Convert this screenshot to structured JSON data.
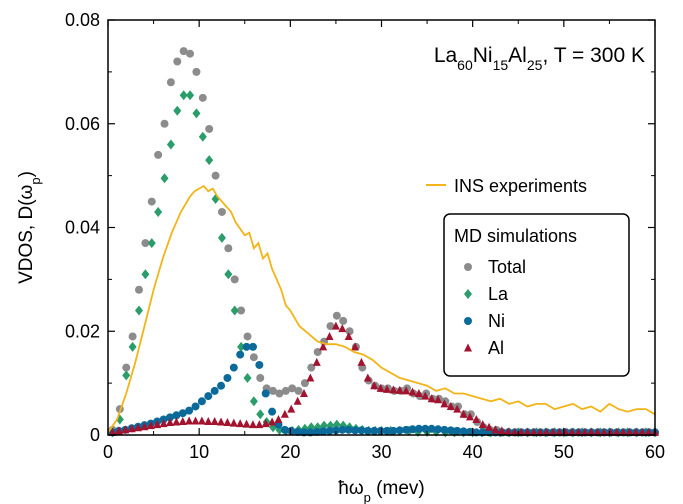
{
  "chart_data": {
    "type": "scatter",
    "annotation": {
      "base": "La",
      "sub1": "60",
      "mid1": "Ni",
      "sub2": "15",
      "mid2": "Al",
      "sub3": "25",
      "tail": ", T = 300 K"
    },
    "xlabel": {
      "prefix": "ħω",
      "sub": "p",
      "suffix": " (mev)"
    },
    "ylabel": {
      "prefix": "VDOS, D(ω",
      "sub": "p",
      "suffix": ")"
    },
    "xlim": [
      0,
      60
    ],
    "ylim": [
      0,
      0.08
    ],
    "xticks": [
      "0",
      "10",
      "20",
      "30",
      "40",
      "50",
      "60"
    ],
    "yticks": [
      "0",
      "0.02",
      "0.04",
      "0.06",
      "0.08"
    ],
    "grid": false,
    "legend": {
      "position": "right",
      "experiment_label": "INS experiments",
      "box_title": "MD simulations"
    },
    "colors": {
      "total": "#8c8c8c",
      "la": "#2a9d6a",
      "ni": "#0b6a9a",
      "al": "#a3122e",
      "ins": "#f2b418"
    },
    "ins_experiment": {
      "name": "INS experiments",
      "x": [
        0,
        1,
        2,
        3,
        4,
        5,
        6,
        7,
        8,
        9,
        9.5,
        10,
        10.5,
        11,
        11.5,
        12,
        12.5,
        13,
        13.5,
        14,
        15,
        15.5,
        16,
        16.5,
        17,
        17.5,
        18,
        18.5,
        19,
        19.5,
        20,
        21,
        22,
        23,
        24,
        25,
        26,
        27,
        28,
        29,
        30,
        31,
        32,
        33,
        34,
        35,
        36,
        37,
        38,
        39,
        40,
        41,
        42,
        43,
        44,
        45,
        46,
        47,
        48,
        49,
        50,
        51,
        52,
        53,
        54,
        55,
        56,
        57,
        58,
        59,
        60
      ],
      "y": [
        0.0005,
        0.003,
        0.008,
        0.014,
        0.021,
        0.028,
        0.034,
        0.039,
        0.043,
        0.046,
        0.047,
        0.0475,
        0.048,
        0.047,
        0.0475,
        0.046,
        0.045,
        0.044,
        0.043,
        0.041,
        0.0385,
        0.039,
        0.036,
        0.037,
        0.034,
        0.035,
        0.032,
        0.03,
        0.028,
        0.025,
        0.024,
        0.021,
        0.0195,
        0.018,
        0.0175,
        0.0175,
        0.017,
        0.016,
        0.0155,
        0.0145,
        0.013,
        0.012,
        0.011,
        0.0105,
        0.01,
        0.0095,
        0.0085,
        0.009,
        0.008,
        0.008,
        0.0075,
        0.007,
        0.0065,
        0.007,
        0.006,
        0.0065,
        0.0055,
        0.006,
        0.006,
        0.005,
        0.0055,
        0.006,
        0.005,
        0.0055,
        0.0045,
        0.006,
        0.005,
        0.0045,
        0.005,
        0.005,
        0.004
      ]
    },
    "series": [
      {
        "name": "Total",
        "marker": "circle",
        "x": [
          0.5,
          1.3,
          2,
          2.7,
          3.4,
          4.1,
          4.8,
          5.5,
          6.2,
          6.9,
          7.6,
          8.3,
          9,
          9.7,
          10.4,
          11.1,
          11.8,
          12.5,
          13.2,
          13.9,
          14.6,
          15.3,
          16,
          16.7,
          17.4,
          18.1,
          18.8,
          19.5,
          20.2,
          20.9,
          21.6,
          22.3,
          23,
          23.7,
          24.4,
          25.1,
          25.8,
          26.5,
          27.2,
          27.9,
          28.6,
          29.3,
          30,
          30.7,
          31.4,
          32.1,
          32.8,
          33.5,
          34.2,
          34.9,
          35.6,
          36.3,
          37,
          37.7,
          38.4,
          39.1,
          39.8,
          40.5,
          41.2,
          41.9,
          42.6,
          43.3,
          44,
          44.7,
          45.4,
          46.1,
          46.8,
          47.5,
          48.2,
          48.9,
          49.6,
          50.3,
          51,
          51.7,
          52.4,
          53.1,
          53.8,
          54.5,
          55.2,
          55.9,
          56.6,
          57.3,
          58,
          58.7,
          59.4,
          60
        ],
        "y": [
          0.001,
          0.005,
          0.013,
          0.019,
          0.028,
          0.037,
          0.045,
          0.054,
          0.06,
          0.068,
          0.072,
          0.074,
          0.0735,
          0.07,
          0.065,
          0.059,
          0.05,
          0.043,
          0.036,
          0.03,
          0.024,
          0.019,
          0.015,
          0.011,
          0.009,
          0.0085,
          0.008,
          0.0085,
          0.009,
          0.0085,
          0.01,
          0.013,
          0.016,
          0.018,
          0.021,
          0.023,
          0.022,
          0.02,
          0.017,
          0.013,
          0.0105,
          0.0095,
          0.009,
          0.009,
          0.0085,
          0.0085,
          0.009,
          0.008,
          0.0075,
          0.008,
          0.007,
          0.007,
          0.0065,
          0.0055,
          0.0055,
          0.004,
          0.004,
          0.0025,
          0.0015,
          0.001,
          0.001,
          0.0005,
          0.0005,
          0.0005,
          0.0005,
          0.0005,
          0.0005,
          0.0005,
          0.0005,
          0.0005,
          0.0005,
          0.0005,
          0.0005,
          0.0005,
          0.0005,
          0.0005,
          0.0005,
          0.0005,
          0.0005,
          0.0005,
          0.0005,
          0.0005,
          0.0005,
          0.0005,
          0.0005,
          0.0005
        ]
      },
      {
        "name": "La",
        "marker": "diamond",
        "x": [
          0.5,
          1.3,
          2,
          2.7,
          3.4,
          4.1,
          4.8,
          5.5,
          6.2,
          6.9,
          7.6,
          8.3,
          9,
          9.7,
          10.4,
          11.1,
          11.8,
          12.5,
          13.2,
          13.9,
          14.6,
          15.3,
          16,
          16.7,
          17.4,
          18.1,
          18.8,
          19.5,
          20.2,
          20.9,
          21.6,
          22.3,
          23,
          23.7,
          24.4,
          25.1,
          25.8,
          26.5,
          27.2,
          27.9,
          28.6,
          29.3,
          30,
          31,
          32,
          33,
          34,
          35,
          36,
          37,
          38,
          39,
          40,
          41,
          42,
          43,
          44,
          45,
          46,
          47,
          48,
          49,
          50,
          51,
          52,
          53,
          54,
          55,
          56,
          57,
          58,
          59,
          60
        ],
        "y": [
          0.0005,
          0.003,
          0.0115,
          0.017,
          0.024,
          0.031,
          0.037,
          0.043,
          0.0495,
          0.056,
          0.0625,
          0.0655,
          0.0655,
          0.062,
          0.0575,
          0.053,
          0.0455,
          0.038,
          0.031,
          0.024,
          0.017,
          0.011,
          0.0065,
          0.004,
          0.0025,
          0.0015,
          0.001,
          0.0008,
          0.0008,
          0.001,
          0.0012,
          0.0015,
          0.0015,
          0.0018,
          0.0018,
          0.002,
          0.0018,
          0.0015,
          0.0012,
          0.001,
          0.0008,
          0.0008,
          0.0008,
          0.0008,
          0.0008,
          0.0008,
          0.0006,
          0.0006,
          0.0006,
          0.0005,
          0.0005,
          0.0005,
          0.0005,
          0.0005,
          0.0005,
          0.0005,
          0.0005,
          0.0005,
          0.0005,
          0.0005,
          0.0005,
          0.0005,
          0.0005,
          0.0005,
          0.0005,
          0.0005,
          0.0005,
          0.0005,
          0.0005,
          0.0005,
          0.0005,
          0.0005,
          0.0005
        ]
      },
      {
        "name": "Ni",
        "marker": "circle",
        "x": [
          0.5,
          1.2,
          1.9,
          2.6,
          3.3,
          4,
          4.7,
          5.4,
          6.1,
          6.8,
          7.5,
          8.2,
          8.9,
          9.6,
          10.3,
          11,
          11.7,
          12.4,
          13.1,
          13.8,
          14.5,
          15.2,
          15.9,
          16.6,
          17.3,
          18,
          18.7,
          19.4,
          20.1,
          20.8,
          21.5,
          22.2,
          22.9,
          23.6,
          24.3,
          25,
          25.7,
          26.4,
          27.1,
          27.8,
          28.5,
          29.2,
          29.9,
          30.6,
          31.3,
          32,
          32.7,
          33.4,
          34.1,
          34.8,
          35.5,
          36.2,
          36.9,
          37.6,
          38.3,
          39,
          39.7,
          40.4,
          41.1,
          41.8,
          42.5,
          43.2,
          43.9,
          44.6,
          45.3,
          46,
          46.7,
          47.4,
          48.1,
          48.8,
          49.5,
          50.2,
          50.9,
          51.6,
          52.3,
          53,
          53.7,
          54.4,
          55.1,
          55.8,
          56.5,
          57.2,
          57.9,
          58.6,
          59.3,
          60
        ],
        "y": [
          0.0005,
          0.0008,
          0.001,
          0.0013,
          0.0016,
          0.0019,
          0.0022,
          0.0026,
          0.003,
          0.0034,
          0.0038,
          0.0042,
          0.0047,
          0.0055,
          0.0065,
          0.0075,
          0.0085,
          0.0095,
          0.011,
          0.013,
          0.0155,
          0.017,
          0.017,
          0.0135,
          0.008,
          0.0045,
          0.002,
          0.001,
          0.0008,
          0.0006,
          0.0005,
          0.0005,
          0.0006,
          0.0007,
          0.0008,
          0.0009,
          0.001,
          0.001,
          0.0009,
          0.0009,
          0.0008,
          0.0008,
          0.0008,
          0.0008,
          0.0008,
          0.0009,
          0.001,
          0.0011,
          0.0012,
          0.0012,
          0.0012,
          0.0011,
          0.001,
          0.0009,
          0.0008,
          0.0007,
          0.0006,
          0.0005,
          0.0005,
          0.0005,
          0.0005,
          0.0005,
          0.0005,
          0.0005,
          0.0005,
          0.0005,
          0.0005,
          0.0005,
          0.0005,
          0.0005,
          0.0005,
          0.0005,
          0.0005,
          0.0005,
          0.0005,
          0.0005,
          0.0005,
          0.0005,
          0.0005,
          0.0005,
          0.0005,
          0.0005,
          0.0005,
          0.0005,
          0.0005,
          0.0005
        ]
      },
      {
        "name": "Al",
        "marker": "triangle",
        "x": [
          0.5,
          1.2,
          1.9,
          2.6,
          3.3,
          4,
          4.7,
          5.4,
          6.1,
          6.8,
          7.5,
          8.2,
          8.9,
          9.6,
          10.3,
          11,
          11.7,
          12.4,
          13.1,
          13.8,
          14.5,
          15.2,
          15.9,
          16.6,
          17.3,
          18,
          18.7,
          19.4,
          20.1,
          20.8,
          21.5,
          22.2,
          22.9,
          23.6,
          24.3,
          25,
          25.7,
          26.4,
          27.1,
          27.8,
          28.5,
          29.2,
          29.9,
          30.6,
          31.3,
          32,
          32.7,
          33.4,
          34.1,
          34.8,
          35.5,
          36.2,
          36.9,
          37.6,
          38.3,
          39,
          39.7,
          40.4,
          41.1,
          41.8,
          42.5,
          43.2,
          43.9,
          44.6,
          45.3,
          46,
          46.7,
          47.4,
          48.1,
          48.8,
          49.5,
          50.2,
          50.9,
          51.6,
          52.3,
          53,
          53.7,
          54.4,
          55.1,
          55.8,
          56.5,
          57.2,
          57.9,
          58.6,
          59.3,
          60
        ],
        "y": [
          0.0005,
          0.0008,
          0.001,
          0.0012,
          0.0014,
          0.0016,
          0.0018,
          0.002,
          0.0022,
          0.0024,
          0.0025,
          0.0026,
          0.0027,
          0.0027,
          0.0027,
          0.0026,
          0.0026,
          0.0025,
          0.0024,
          0.0023,
          0.0022,
          0.0021,
          0.002,
          0.002,
          0.0022,
          0.0025,
          0.003,
          0.004,
          0.005,
          0.0065,
          0.008,
          0.011,
          0.014,
          0.017,
          0.019,
          0.021,
          0.0205,
          0.019,
          0.017,
          0.014,
          0.011,
          0.0095,
          0.009,
          0.0088,
          0.0087,
          0.0086,
          0.0085,
          0.0083,
          0.008,
          0.0075,
          0.007,
          0.0068,
          0.006,
          0.0055,
          0.005,
          0.004,
          0.0035,
          0.003,
          0.002,
          0.0015,
          0.001,
          0.0008,
          0.0006,
          0.0005,
          0.0005,
          0.0005,
          0.0005,
          0.0005,
          0.0005,
          0.0005,
          0.0005,
          0.0005,
          0.0005,
          0.0005,
          0.0005,
          0.0005,
          0.0005,
          0.0005,
          0.0005,
          0.0005,
          0.0005,
          0.0005,
          0.0005,
          0.0005,
          0.0005,
          0.0005
        ]
      }
    ]
  }
}
